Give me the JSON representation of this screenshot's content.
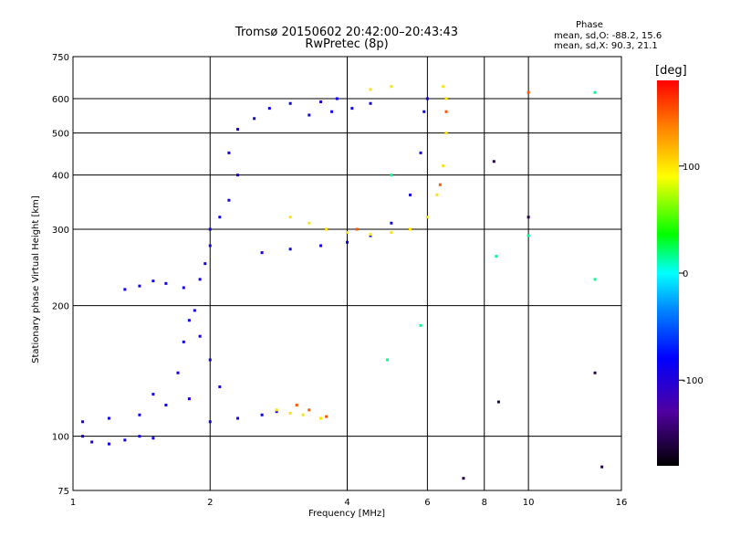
{
  "header": {
    "title_line1": "Tromsø 20150602 20:42:00–20:43:43",
    "title_line2": "RwPretec (8p)",
    "phase_heading": "Phase",
    "phase_stats_o": "mean, sd,O: -88.2, 15.6",
    "phase_stats_x": "mean, sd,X:  90.3, 21.1"
  },
  "chart_data": {
    "type": "scatter",
    "xlabel": "Frequency [MHz]",
    "ylabel": "Stationary phase Virtual Height [km]",
    "x_scale": "log",
    "y_scale": "log",
    "xlim": [
      1,
      16
    ],
    "ylim": [
      75,
      750
    ],
    "x_ticks": [
      1,
      2,
      4,
      6,
      8,
      10,
      16
    ],
    "y_ticks": [
      75,
      100,
      200,
      300,
      400,
      500,
      600,
      750
    ],
    "grid": true,
    "colorbar": {
      "label": "[deg]",
      "min": -180,
      "max": 180,
      "ticks": [
        100,
        0,
        -100
      ],
      "colormap": [
        "#000000",
        "#5000a0",
        "#0000ff",
        "#0080ff",
        "#00ffff",
        "#00ff00",
        "#ffff00",
        "#ff8000",
        "#ff0000"
      ]
    },
    "series": [
      {
        "phase": -100,
        "points": [
          [
            1.05,
            100
          ],
          [
            1.1,
            97
          ],
          [
            1.2,
            96
          ],
          [
            1.3,
            98
          ],
          [
            1.4,
            100
          ],
          [
            1.5,
            99
          ],
          [
            1.05,
            108
          ],
          [
            1.2,
            110
          ],
          [
            1.4,
            112
          ],
          [
            1.6,
            118
          ],
          [
            1.8,
            122
          ],
          [
            2.0,
            108
          ],
          [
            2.3,
            110
          ],
          [
            2.6,
            112
          ],
          [
            2.8,
            114
          ],
          [
            1.5,
            125
          ],
          [
            1.7,
            140
          ],
          [
            1.75,
            165
          ],
          [
            1.8,
            185
          ],
          [
            1.85,
            195
          ],
          [
            1.9,
            170
          ],
          [
            2.0,
            150
          ],
          [
            2.1,
            130
          ],
          [
            1.3,
            218
          ],
          [
            1.4,
            222
          ],
          [
            1.5,
            228
          ],
          [
            1.6,
            225
          ],
          [
            1.75,
            220
          ],
          [
            1.9,
            230
          ],
          [
            1.95,
            250
          ],
          [
            2.0,
            275
          ],
          [
            2.0,
            300
          ],
          [
            2.1,
            320
          ],
          [
            2.2,
            350
          ],
          [
            2.3,
            400
          ],
          [
            2.2,
            450
          ],
          [
            2.3,
            510
          ],
          [
            2.5,
            540
          ],
          [
            2.7,
            570
          ],
          [
            3.0,
            585
          ],
          [
            3.5,
            590
          ],
          [
            3.8,
            600
          ],
          [
            2.6,
            265
          ],
          [
            3.0,
            270
          ],
          [
            3.5,
            275
          ],
          [
            4.0,
            280
          ],
          [
            4.5,
            290
          ],
          [
            5.0,
            310
          ],
          [
            5.5,
            360
          ],
          [
            5.8,
            450
          ],
          [
            5.9,
            560
          ],
          [
            6.0,
            600
          ],
          [
            3.3,
            550
          ],
          [
            3.7,
            560
          ],
          [
            4.1,
            570
          ],
          [
            4.5,
            585
          ]
        ]
      },
      {
        "phase": 100,
        "points": [
          [
            2.8,
            115
          ],
          [
            3.0,
            113
          ],
          [
            3.2,
            112
          ],
          [
            3.5,
            110
          ],
          [
            3.0,
            320
          ],
          [
            3.3,
            310
          ],
          [
            3.6,
            300
          ],
          [
            4.0,
            295
          ],
          [
            4.5,
            292
          ],
          [
            5.0,
            295
          ],
          [
            5.5,
            300
          ],
          [
            6.0,
            320
          ],
          [
            6.3,
            360
          ],
          [
            6.5,
            420
          ],
          [
            6.6,
            500
          ],
          [
            6.6,
            600
          ],
          [
            6.5,
            640
          ],
          [
            4.5,
            630
          ],
          [
            5.0,
            640
          ]
        ]
      },
      {
        "phase": 150,
        "points": [
          [
            3.1,
            118
          ],
          [
            3.3,
            115
          ],
          [
            3.6,
            111
          ],
          [
            4.2,
            300
          ],
          [
            6.4,
            380
          ],
          [
            6.6,
            560
          ],
          [
            10.0,
            620
          ]
        ]
      },
      {
        "phase": 20,
        "points": [
          [
            4.9,
            150
          ],
          [
            5.8,
            180
          ],
          [
            8.5,
            260
          ],
          [
            10.0,
            290
          ],
          [
            14.0,
            230
          ],
          [
            14.0,
            620
          ],
          [
            5.0,
            400
          ]
        ]
      },
      {
        "phase": -160,
        "points": [
          [
            7.2,
            80
          ],
          [
            8.6,
            120
          ],
          [
            14.5,
            85
          ],
          [
            14.0,
            140
          ],
          [
            10.0,
            320
          ],
          [
            8.4,
            430
          ]
        ]
      }
    ]
  }
}
